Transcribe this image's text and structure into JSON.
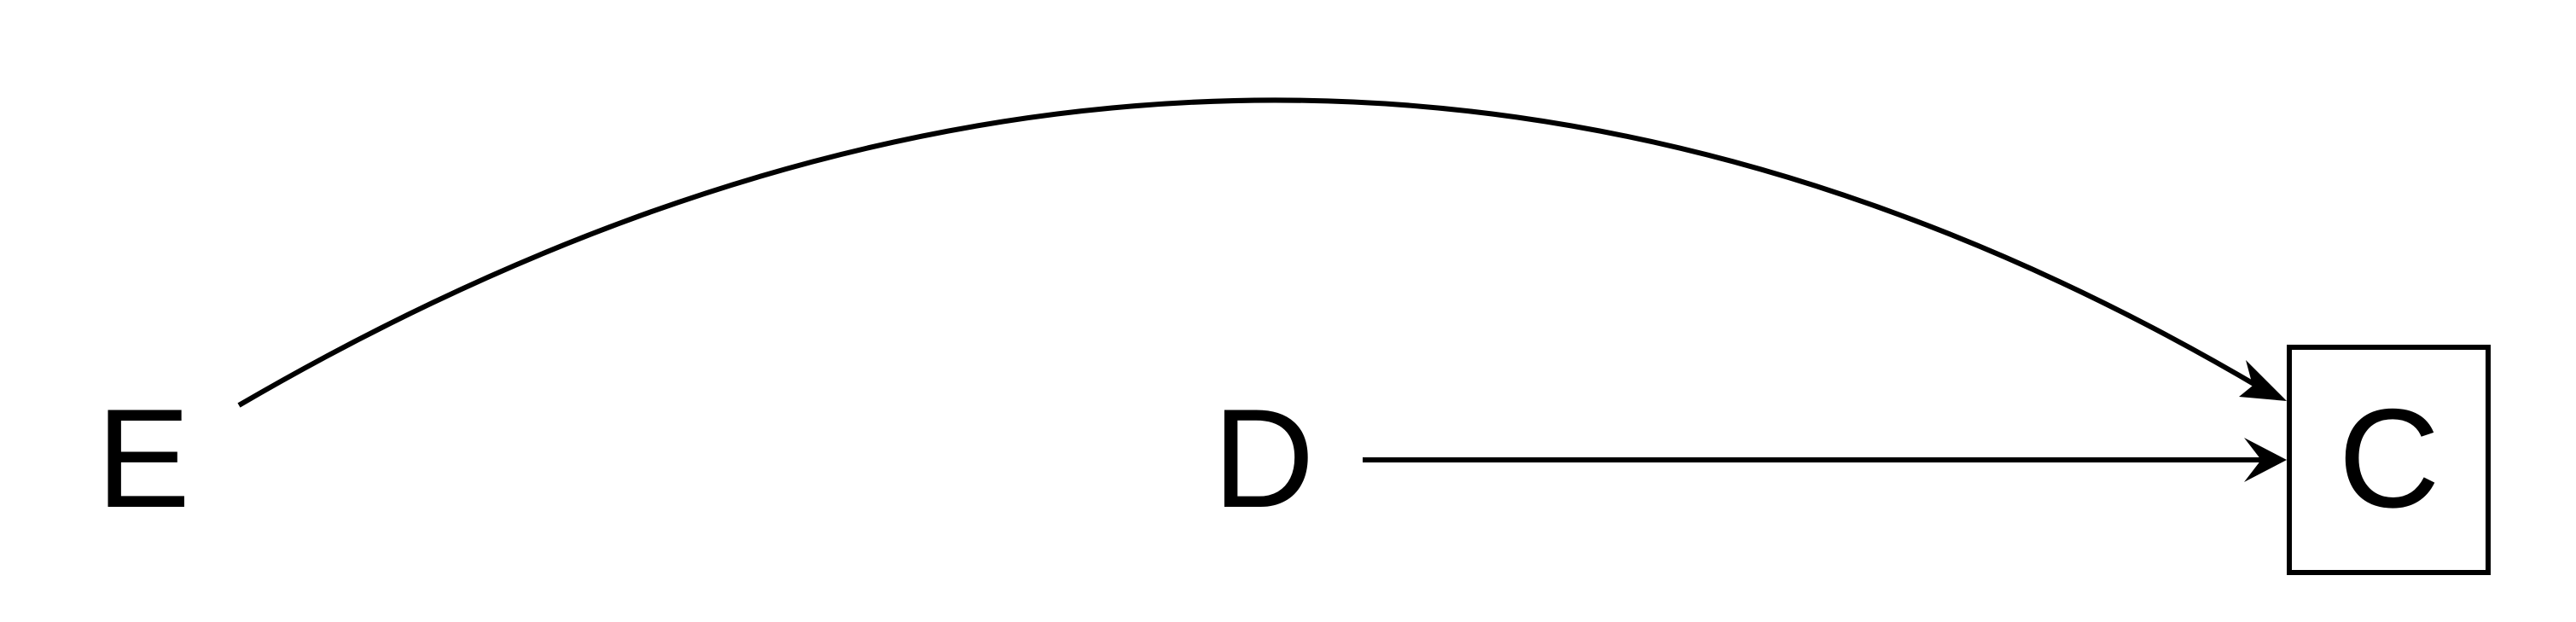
{
  "diagram": {
    "nodes": [
      {
        "id": "E",
        "label": "E",
        "boxed": false
      },
      {
        "id": "D",
        "label": "D",
        "boxed": false
      },
      {
        "id": "C",
        "label": "C",
        "boxed": true
      }
    ],
    "edges": [
      {
        "from": "E",
        "to": "C",
        "style": "curved"
      },
      {
        "from": "D",
        "to": "C",
        "style": "straight"
      }
    ],
    "colors": {
      "stroke": "#000000",
      "background": "#ffffff"
    }
  }
}
